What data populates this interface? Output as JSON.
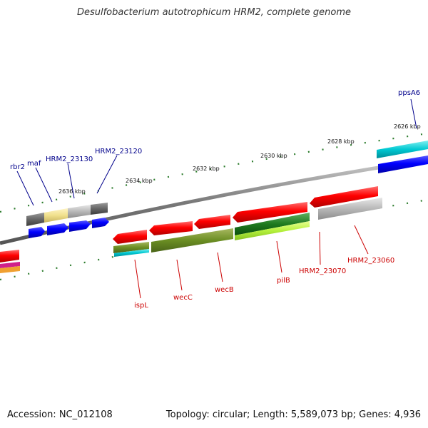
{
  "title": "Desulfobacterium autotrophicum HRM2, complete genome",
  "footer": {
    "accession": "Accession: NC_012108",
    "topology": "Topology: circular; Length: 5,589,073 bp; Genes: 4,936"
  },
  "colors": {
    "backbone": "#8a8a8a",
    "tick": "#2e7d2e",
    "forward_label": "#00008b",
    "reverse_label": "#cc0000"
  },
  "scale_labels": [
    "2626 kbp",
    "2628 kbp",
    "2630 kbp",
    "2632 kbp",
    "2634 kbp",
    "2636 kbp"
  ],
  "forward_labels": [
    "ppsA6",
    "rbr2",
    "maf",
    "HRM2_23130",
    "HRM2_23120"
  ],
  "reverse_labels": [
    "ispL",
    "wecC",
    "wecB",
    "pilB",
    "HRM2_23070",
    "HRM2_23060"
  ]
}
